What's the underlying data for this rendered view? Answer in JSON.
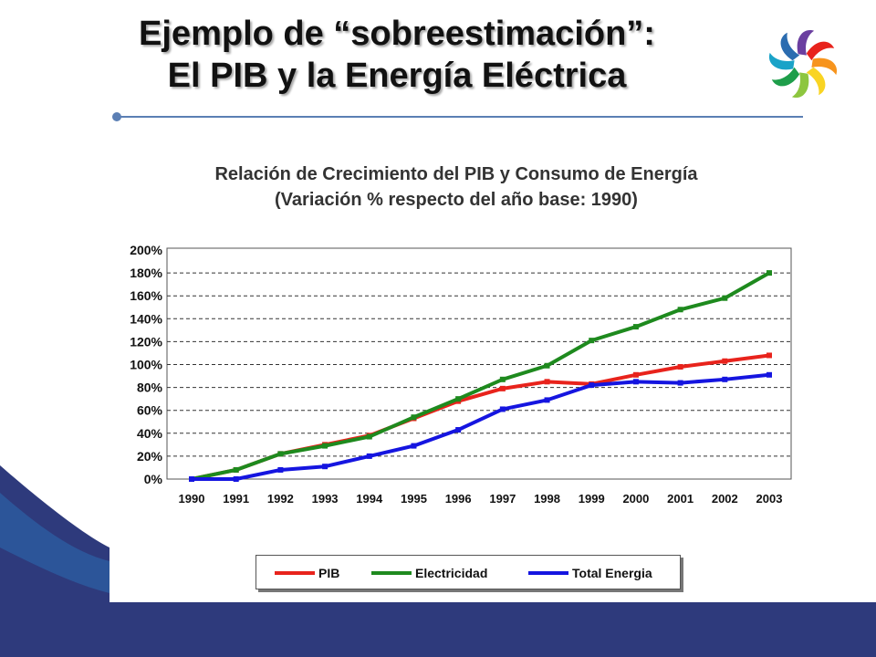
{
  "slide": {
    "title_line1": "Ejemplo de “sobreestimación”:",
    "title_line2": "El PIB y la Energía Eléctrica"
  },
  "logo": {
    "icon": "pinwheel-logo-icon"
  },
  "colors": {
    "divider": "#5b7fb4",
    "background_shape": "#2e3a7c",
    "background_shape_accent": "#2b6cb0"
  },
  "chart_data": {
    "type": "line",
    "title": "Relación de Crecimiento del PIB y Consumo de Energía",
    "subtitle": "(Variación % respecto del año base: 1990)",
    "xlabel": "",
    "ylabel": "",
    "categories": [
      "1990",
      "1991",
      "1992",
      "1993",
      "1994",
      "1995",
      "1996",
      "1997",
      "1998",
      "1999",
      "2000",
      "2001",
      "2002",
      "2003"
    ],
    "ylim": [
      0,
      200
    ],
    "yticks": [
      "0%",
      "20%",
      "40%",
      "60%",
      "80%",
      "100%",
      "120%",
      "140%",
      "160%",
      "180%",
      "200%"
    ],
    "grid": true,
    "legend_position": "bottom",
    "series": [
      {
        "name": "PIB",
        "color": "#e8231c",
        "values": [
          0,
          8,
          22,
          30,
          38,
          53,
          68,
          79,
          85,
          83,
          91,
          98,
          103,
          108
        ]
      },
      {
        "name": "Electricidad",
        "color": "#1e8a1e",
        "values": [
          0,
          8,
          22,
          29,
          37,
          54,
          70,
          87,
          99,
          121,
          133,
          148,
          158,
          180
        ]
      },
      {
        "name": "Total Energia",
        "color": "#1515e0",
        "values": [
          0,
          0,
          8,
          11,
          20,
          29,
          43,
          61,
          69,
          82,
          85,
          84,
          87,
          91
        ]
      }
    ]
  }
}
